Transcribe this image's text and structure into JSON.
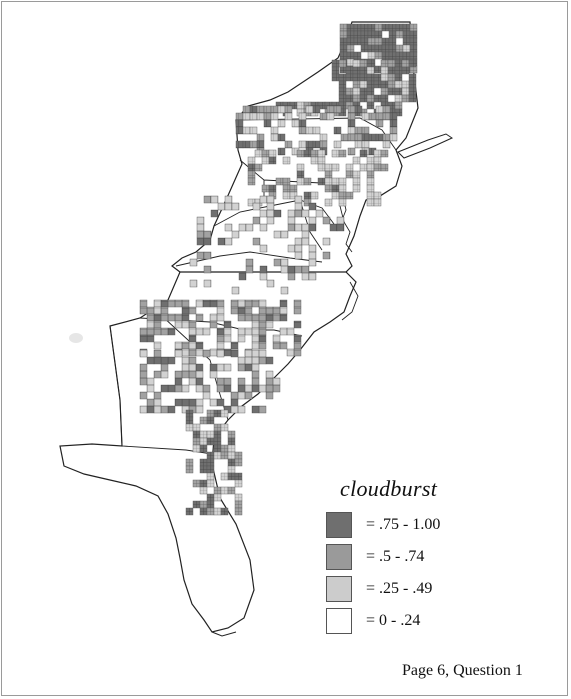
{
  "map": {
    "title": "cloudburst",
    "caption": "Page 6, Question 1",
    "region": "Eastern United States",
    "legend": [
      {
        "label": "= .75 - 1.00",
        "color": "#6f6f6f",
        "range": [
          0.75,
          1.0
        ]
      },
      {
        "label": "= .5 - .74",
        "color": "#9a9a9a",
        "range": [
          0.5,
          0.74
        ]
      },
      {
        "label": "= .25 - .49",
        "color": "#cccccc",
        "range": [
          0.25,
          0.49
        ]
      },
      {
        "label": "= 0 - .24",
        "color": "#ffffff",
        "range": [
          0.0,
          0.24
        ]
      }
    ]
  }
}
